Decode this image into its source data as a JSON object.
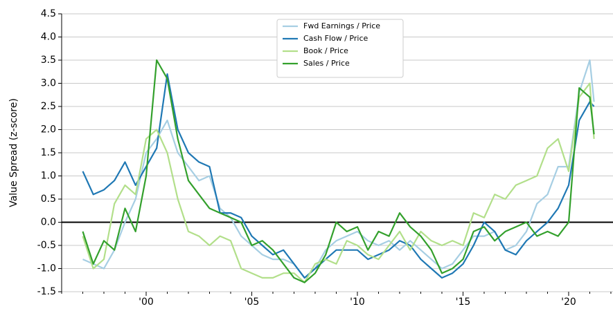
{
  "chart_data": {
    "type": "line",
    "y_label": "Value Spread (z-score)",
    "x": [
      1997,
      1997.5,
      1998,
      1998.5,
      1999,
      1999.5,
      2000,
      2000.5,
      2001,
      2001.5,
      2002,
      2002.5,
      2003,
      2003.5,
      2004,
      2004.5,
      2005,
      2005.5,
      2006,
      2006.5,
      2007,
      2007.5,
      2008,
      2008.5,
      2009,
      2009.5,
      2010,
      2010.5,
      2011,
      2011.5,
      2012,
      2012.5,
      2013,
      2013.5,
      2014,
      2014.5,
      2015,
      2015.5,
      2016,
      2016.5,
      2017,
      2017.5,
      2018,
      2018.5,
      2019,
      2019.5,
      2020,
      2020.5,
      2021,
      2021.2
    ],
    "series": [
      {
        "name": "Fwd Earnings / Price",
        "color": "#a6cee3",
        "values": [
          -0.8,
          -0.9,
          -1.0,
          -0.6,
          0.0,
          0.5,
          1.5,
          1.8,
          2.2,
          1.5,
          1.2,
          0.9,
          1.0,
          0.3,
          0.1,
          -0.3,
          -0.5,
          -0.7,
          -0.8,
          -0.8,
          -0.9,
          -1.2,
          -1.0,
          -0.6,
          -0.4,
          -0.3,
          -0.2,
          -0.4,
          -0.5,
          -0.4,
          -0.6,
          -0.4,
          -0.6,
          -0.8,
          -1.0,
          -0.9,
          -0.6,
          -0.3,
          -0.3,
          -0.2,
          -0.6,
          -0.5,
          -0.2,
          0.4,
          0.6,
          1.2,
          1.2,
          2.8,
          3.5,
          2.6
        ]
      },
      {
        "name": "Cash Flow / Price",
        "color": "#1f78b4",
        "values": [
          1.1,
          0.6,
          0.7,
          0.9,
          1.3,
          0.8,
          1.2,
          1.6,
          3.2,
          2.0,
          1.5,
          1.3,
          1.2,
          0.2,
          0.2,
          0.1,
          -0.3,
          -0.5,
          -0.7,
          -0.6,
          -0.9,
          -1.2,
          -1.0,
          -0.8,
          -0.6,
          -0.6,
          -0.6,
          -0.8,
          -0.7,
          -0.6,
          -0.4,
          -0.5,
          -0.8,
          -1.0,
          -1.2,
          -1.1,
          -0.9,
          -0.5,
          0.0,
          -0.2,
          -0.6,
          -0.7,
          -0.4,
          -0.2,
          0.0,
          0.3,
          0.8,
          2.2,
          2.6,
          2.5
        ]
      },
      {
        "name": "Book / Price",
        "color": "#b2df8a",
        "values": [
          -0.3,
          -1.0,
          -0.8,
          0.4,
          0.8,
          0.6,
          1.8,
          2.0,
          1.5,
          0.5,
          -0.2,
          -0.3,
          -0.5,
          -0.3,
          -0.4,
          -1.0,
          -1.1,
          -1.2,
          -1.2,
          -1.1,
          -1.1,
          -1.3,
          -0.9,
          -0.8,
          -0.9,
          -0.4,
          -0.5,
          -0.7,
          -0.8,
          -0.5,
          -0.2,
          -0.6,
          -0.2,
          -0.4,
          -0.5,
          -0.4,
          -0.5,
          0.2,
          0.1,
          0.6,
          0.5,
          0.8,
          0.9,
          1.0,
          1.6,
          1.8,
          1.1,
          2.7,
          3.0,
          1.8
        ]
      },
      {
        "name": "Sales / Price",
        "color": "#33a02c",
        "values": [
          -0.2,
          -0.9,
          -0.4,
          -0.6,
          0.3,
          -0.2,
          1.0,
          3.5,
          3.1,
          1.8,
          0.9,
          0.6,
          0.3,
          0.2,
          0.1,
          0.0,
          -0.5,
          -0.4,
          -0.6,
          -0.9,
          -1.2,
          -1.3,
          -1.1,
          -0.7,
          0.0,
          -0.2,
          -0.1,
          -0.6,
          -0.2,
          -0.3,
          0.2,
          -0.1,
          -0.3,
          -0.6,
          -1.1,
          -1.0,
          -0.8,
          -0.2,
          -0.1,
          -0.4,
          -0.2,
          -0.1,
          0.0,
          -0.3,
          -0.2,
          -0.3,
          0.0,
          2.9,
          2.7,
          1.9
        ]
      }
    ],
    "xlim": [
      1996,
      2022.1
    ],
    "xticks": [
      {
        "value": 2000,
        "label": "'00"
      },
      {
        "value": 2005,
        "label": "'05"
      },
      {
        "value": 2010,
        "label": "'10"
      },
      {
        "value": 2015,
        "label": "'15"
      },
      {
        "value": 2020,
        "label": "'20"
      }
    ],
    "xminorticks": [
      1996,
      1997,
      1998,
      1999,
      2001,
      2002,
      2003,
      2004,
      2006,
      2007,
      2008,
      2009,
      2011,
      2012,
      2013,
      2014,
      2016,
      2017,
      2018,
      2019,
      2021,
      2022
    ],
    "ylim": [
      -1.5,
      4.5
    ],
    "yticks": [
      -1.5,
      {
        "value": -1,
        "label": "-1.0"
      },
      -0.5,
      {
        "value": 0,
        "label": "0.0"
      },
      0.5,
      {
        "value": 1,
        "label": "1.0"
      },
      1.5,
      {
        "value": 2,
        "label": "2.0"
      },
      2.5,
      {
        "value": 3,
        "label": "3.0"
      },
      3.5,
      {
        "value": 4,
        "label": "4.0"
      },
      4.5
    ],
    "grid": true,
    "zero_line": true,
    "legend": "upper center"
  }
}
